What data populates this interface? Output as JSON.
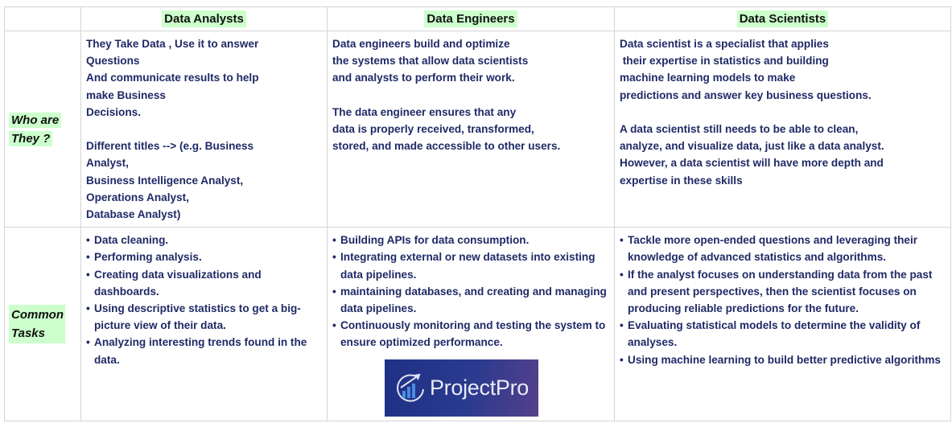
{
  "headers": [
    "",
    "Data Analysts",
    "Data Engineers",
    "Data Scientists"
  ],
  "rows": [
    {
      "label": "Who are They ?",
      "cells": [
        [
          "They Take Data , Use it to answer",
          "Questions",
          "And communicate results to help",
          "make Business",
          "Decisions.",
          "",
          "Different titles --> (e.g. Business",
          "Analyst,",
          "Business Intelligence Analyst,",
          "Operations Analyst,",
          "Database Analyst)"
        ],
        [
          "Data engineers build and optimize",
          "the systems that allow data scientists",
          "and analysts to perform their work.",
          "",
          "The data engineer ensures that any",
          "data is properly received, transformed,",
          "stored, and made accessible to other users."
        ],
        [
          "Data scientist is a specialist that applies",
          " their expertise in statistics and building",
          "machine learning models to make",
          "predictions and answer key business questions.",
          "",
          "A data scientist still needs to be able to clean,",
          "analyze, and visualize data, just like a data analyst.",
          "However, a data scientist will have more depth and",
          "expertise in these skills"
        ]
      ]
    },
    {
      "label": "Common Tasks",
      "cells": [
        [
          "Data cleaning.",
          "Performing analysis.",
          "Creating data visualizations and dashboards.",
          "Using descriptive statistics to get a big-picture view of their data.",
          "Analyzing interesting trends found in the data."
        ],
        [
          "Building APIs for data consumption.",
          "Integrating external or new datasets into existing data pipelines.",
          "maintaining databases, and creating and managing data pipelines.",
          "Continuously monitoring and testing the system to ensure optimized performance."
        ],
        [
          "Tackle more open-ended questions and leveraging their knowledge of advanced statistics and algorithms.",
          "If the analyst focuses on understanding data from  the past and present perspectives, then the scientist focuses on producing reliable predictions  for the future.",
          "Evaluating statistical models to determine the validity of analyses.",
          "Using machine learning to build better predictive algorithms"
        ]
      ]
    }
  ],
  "logo": {
    "text": "ProjectPro",
    "icon": "chart-arrow-logo-icon"
  },
  "colors": {
    "text": "#1f2a66",
    "highlight": "#ccffcc",
    "border": "#d4d4d4"
  }
}
